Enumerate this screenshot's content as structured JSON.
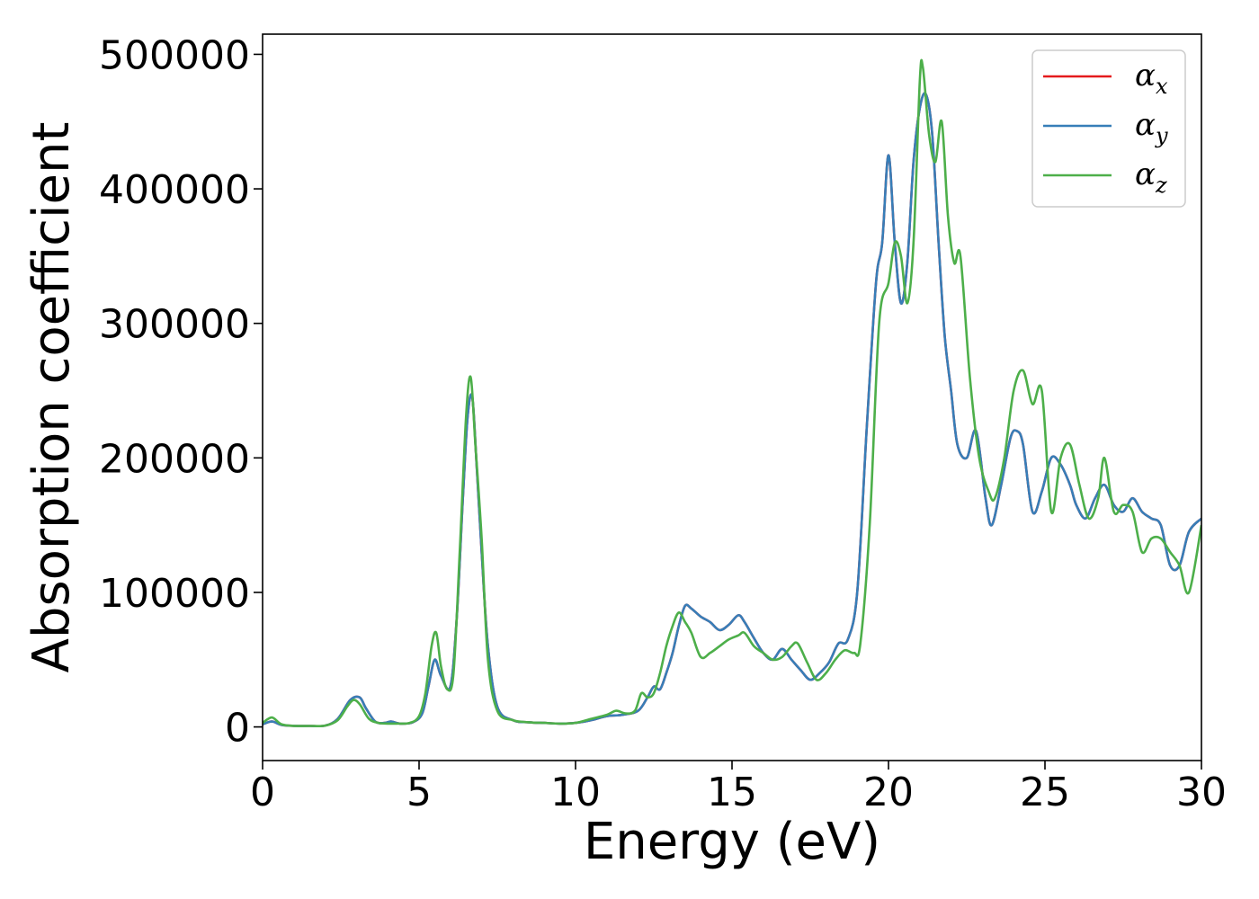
{
  "chart_data": {
    "type": "line",
    "title": "",
    "xlabel": "Energy (eV)",
    "ylabel": "Absorption coefficient",
    "xlim": [
      0,
      30
    ],
    "ylim": [
      -25000,
      515000
    ],
    "x_ticks": [
      0,
      5,
      10,
      15,
      20,
      25,
      30
    ],
    "y_ticks": [
      0,
      100000,
      200000,
      300000,
      400000,
      500000
    ],
    "grid": false,
    "legend_position": "top-right",
    "series": [
      {
        "name": "α",
        "name_subscript": "x",
        "color": "#e41a1c",
        "x": [
          0,
          0.3,
          0.6,
          1,
          1.5,
          2,
          2.4,
          2.8,
          3.1,
          3.3,
          3.6,
          3.9,
          4.1,
          4.4,
          4.8,
          5.1,
          5.3,
          5.5,
          5.7,
          6.0,
          6.2,
          6.4,
          6.55,
          6.7,
          6.85,
          7.0,
          7.2,
          7.5,
          8.0,
          8.5,
          9.0,
          9.5,
          10.0,
          10.5,
          11.0,
          11.5,
          12.0,
          12.3,
          12.5,
          12.7,
          12.9,
          13.1,
          13.3,
          13.5,
          13.7,
          14.0,
          14.3,
          14.6,
          14.9,
          15.2,
          15.4,
          15.7,
          16.0,
          16.3,
          16.6,
          16.9,
          17.2,
          17.5,
          17.8,
          18.1,
          18.4,
          18.7,
          19.0,
          19.3,
          19.6,
          19.8,
          20.0,
          20.2,
          20.4,
          20.6,
          20.8,
          21.0,
          21.2,
          21.4,
          21.6,
          21.8,
          22.0,
          22.2,
          22.5,
          22.8,
          23.1,
          23.3,
          23.6,
          23.9,
          24.1,
          24.3,
          24.6,
          24.9,
          25.2,
          25.5,
          25.8,
          26.0,
          26.3,
          26.6,
          26.9,
          27.2,
          27.5,
          27.8,
          28.1,
          28.4,
          28.7,
          29.0,
          29.3,
          29.6,
          30.0
        ],
        "y": [
          2000,
          4000,
          1500,
          800,
          700,
          1000,
          6000,
          20000,
          22000,
          14000,
          4000,
          3000,
          4000,
          2500,
          3500,
          10000,
          30000,
          50000,
          38000,
          30000,
          80000,
          170000,
          230000,
          245000,
          190000,
          130000,
          60000,
          15000,
          5000,
          3500,
          3000,
          2500,
          3000,
          5000,
          8000,
          9000,
          12000,
          22000,
          30000,
          28000,
          40000,
          55000,
          75000,
          90000,
          88000,
          82000,
          78000,
          72000,
          76000,
          83000,
          78000,
          66000,
          55000,
          50000,
          58000,
          50000,
          42000,
          35000,
          40000,
          48000,
          62000,
          65000,
          100000,
          220000,
          330000,
          360000,
          425000,
          360000,
          315000,
          345000,
          420000,
          460000,
          470000,
          440000,
          360000,
          290000,
          250000,
          210000,
          200000,
          220000,
          170000,
          150000,
          180000,
          215000,
          220000,
          210000,
          160000,
          175000,
          200000,
          195000,
          180000,
          165000,
          155000,
          170000,
          180000,
          165000,
          160000,
          170000,
          160000,
          155000,
          150000,
          120000,
          120000,
          145000,
          155000
        ]
      },
      {
        "name": "α",
        "name_subscript": "y",
        "color": "#377eb8",
        "x": [
          0,
          0.3,
          0.6,
          1,
          1.5,
          2,
          2.4,
          2.8,
          3.1,
          3.3,
          3.6,
          3.9,
          4.1,
          4.4,
          4.8,
          5.1,
          5.3,
          5.5,
          5.7,
          6.0,
          6.2,
          6.4,
          6.55,
          6.7,
          6.85,
          7.0,
          7.2,
          7.5,
          8.0,
          8.5,
          9.0,
          9.5,
          10.0,
          10.5,
          11.0,
          11.5,
          12.0,
          12.3,
          12.5,
          12.7,
          12.9,
          13.1,
          13.3,
          13.5,
          13.7,
          14.0,
          14.3,
          14.6,
          14.9,
          15.2,
          15.4,
          15.7,
          16.0,
          16.3,
          16.6,
          16.9,
          17.2,
          17.5,
          17.8,
          18.1,
          18.4,
          18.7,
          19.0,
          19.3,
          19.6,
          19.8,
          20.0,
          20.2,
          20.4,
          20.6,
          20.8,
          21.0,
          21.2,
          21.4,
          21.6,
          21.8,
          22.0,
          22.2,
          22.5,
          22.8,
          23.1,
          23.3,
          23.6,
          23.9,
          24.1,
          24.3,
          24.6,
          24.9,
          25.2,
          25.5,
          25.8,
          26.0,
          26.3,
          26.6,
          26.9,
          27.2,
          27.5,
          27.8,
          28.1,
          28.4,
          28.7,
          29.0,
          29.3,
          29.6,
          30.0
        ],
        "y": [
          2000,
          4000,
          1500,
          800,
          700,
          1000,
          6000,
          20000,
          22000,
          14000,
          4000,
          3000,
          4000,
          2500,
          3500,
          10000,
          30000,
          50000,
          38000,
          30000,
          80000,
          170000,
          230000,
          245000,
          190000,
          130000,
          60000,
          15000,
          5000,
          3500,
          3000,
          2500,
          3000,
          5000,
          8000,
          9000,
          12000,
          22000,
          30000,
          28000,
          40000,
          55000,
          75000,
          90000,
          88000,
          82000,
          78000,
          72000,
          76000,
          83000,
          78000,
          66000,
          55000,
          50000,
          58000,
          50000,
          42000,
          35000,
          40000,
          48000,
          62000,
          65000,
          100000,
          220000,
          330000,
          360000,
          425000,
          360000,
          315000,
          345000,
          420000,
          460000,
          470000,
          440000,
          360000,
          290000,
          250000,
          210000,
          200000,
          220000,
          170000,
          150000,
          180000,
          215000,
          220000,
          210000,
          160000,
          175000,
          200000,
          195000,
          180000,
          165000,
          155000,
          170000,
          180000,
          165000,
          160000,
          170000,
          160000,
          155000,
          150000,
          120000,
          120000,
          145000,
          155000
        ]
      },
      {
        "name": "α",
        "name_subscript": "z",
        "color": "#4daf4a",
        "x": [
          0,
          0.3,
          0.6,
          1,
          1.5,
          2,
          2.4,
          2.7,
          2.9,
          3.1,
          3.4,
          3.7,
          4.0,
          4.3,
          4.7,
          5.0,
          5.2,
          5.4,
          5.55,
          5.7,
          5.9,
          6.1,
          6.3,
          6.5,
          6.65,
          6.8,
          7.0,
          7.2,
          7.5,
          8.0,
          8.5,
          9.0,
          9.5,
          10.0,
          10.5,
          11.0,
          11.3,
          11.6,
          11.9,
          12.1,
          12.3,
          12.5,
          12.7,
          12.9,
          13.1,
          13.3,
          13.5,
          13.7,
          14.0,
          14.3,
          14.6,
          14.9,
          15.2,
          15.4,
          15.7,
          16.0,
          16.3,
          16.6,
          16.9,
          17.1,
          17.4,
          17.7,
          18.0,
          18.3,
          18.6,
          18.9,
          19.1,
          19.4,
          19.7,
          20.0,
          20.2,
          20.4,
          20.6,
          20.8,
          21.0,
          21.1,
          21.3,
          21.5,
          21.7,
          21.9,
          22.1,
          22.3,
          22.6,
          22.9,
          23.2,
          23.4,
          23.7,
          24.0,
          24.3,
          24.6,
          24.9,
          25.2,
          25.5,
          25.8,
          26.1,
          26.4,
          26.7,
          26.9,
          27.2,
          27.5,
          27.8,
          28.1,
          28.4,
          28.7,
          29.0,
          29.3,
          29.6,
          30.0
        ],
        "y": [
          3000,
          7000,
          2000,
          800,
          700,
          1000,
          5000,
          15000,
          20000,
          17000,
          6000,
          3000,
          2500,
          2500,
          3000,
          8000,
          25000,
          60000,
          70000,
          45000,
          28000,
          40000,
          130000,
          230000,
          260000,
          210000,
          140000,
          50000,
          12000,
          5000,
          3500,
          3000,
          2500,
          3000,
          6000,
          9000,
          12000,
          10000,
          12000,
          25000,
          22000,
          25000,
          40000,
          60000,
          75000,
          85000,
          78000,
          70000,
          52000,
          55000,
          60000,
          65000,
          68000,
          70000,
          60000,
          55000,
          50000,
          52000,
          60000,
          62000,
          48000,
          35000,
          40000,
          50000,
          57000,
          55000,
          62000,
          150000,
          300000,
          330000,
          360000,
          350000,
          315000,
          360000,
          480000,
          490000,
          440000,
          420000,
          450000,
          380000,
          345000,
          350000,
          260000,
          200000,
          175000,
          170000,
          200000,
          250000,
          265000,
          240000,
          250000,
          160000,
          200000,
          210000,
          180000,
          155000,
          170000,
          200000,
          160000,
          165000,
          160000,
          130000,
          140000,
          140000,
          130000,
          120000,
          100000,
          150000
        ]
      }
    ]
  }
}
